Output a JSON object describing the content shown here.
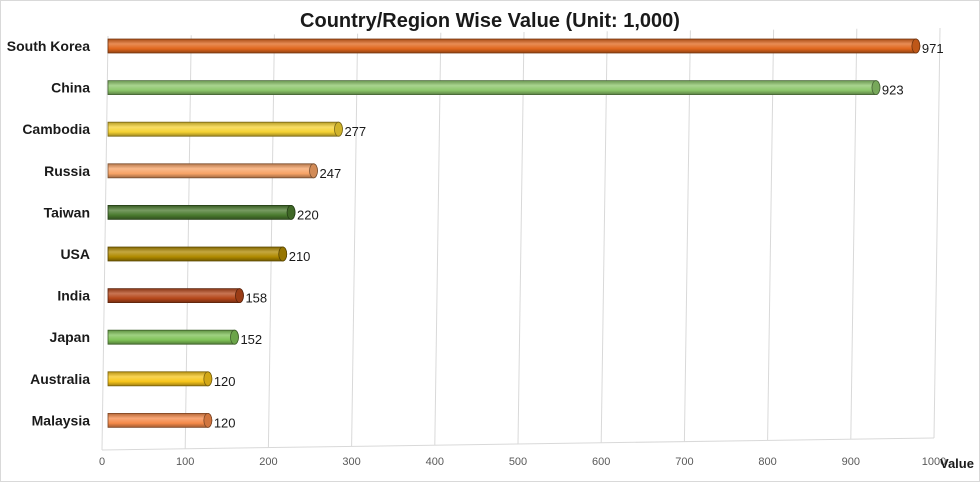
{
  "chart_data": {
    "type": "bar",
    "orientation": "horizontal",
    "title": "Country/Region Wise Value (Unit: 1,000)",
    "xlabel": "Value",
    "ylabel": "",
    "xlim": [
      0,
      1000
    ],
    "x_ticks": [
      0,
      100,
      200,
      300,
      400,
      500,
      600,
      700,
      800,
      900,
      1000
    ],
    "grid": true,
    "legend": "none",
    "categories": [
      "South Korea",
      "China",
      "Cambodia",
      "Russia",
      "Taiwan",
      "USA",
      "India",
      "Japan",
      "Australia",
      "Malaysia"
    ],
    "values": [
      971,
      923,
      277,
      247,
      220,
      210,
      158,
      152,
      120,
      120
    ],
    "colors": [
      "#e0661c",
      "#8cc66a",
      "#f5d233",
      "#f7a366",
      "#4a7a2e",
      "#b08a00",
      "#b5471a",
      "#7fc257",
      "#f7c51a",
      "#f58a4a"
    ]
  }
}
